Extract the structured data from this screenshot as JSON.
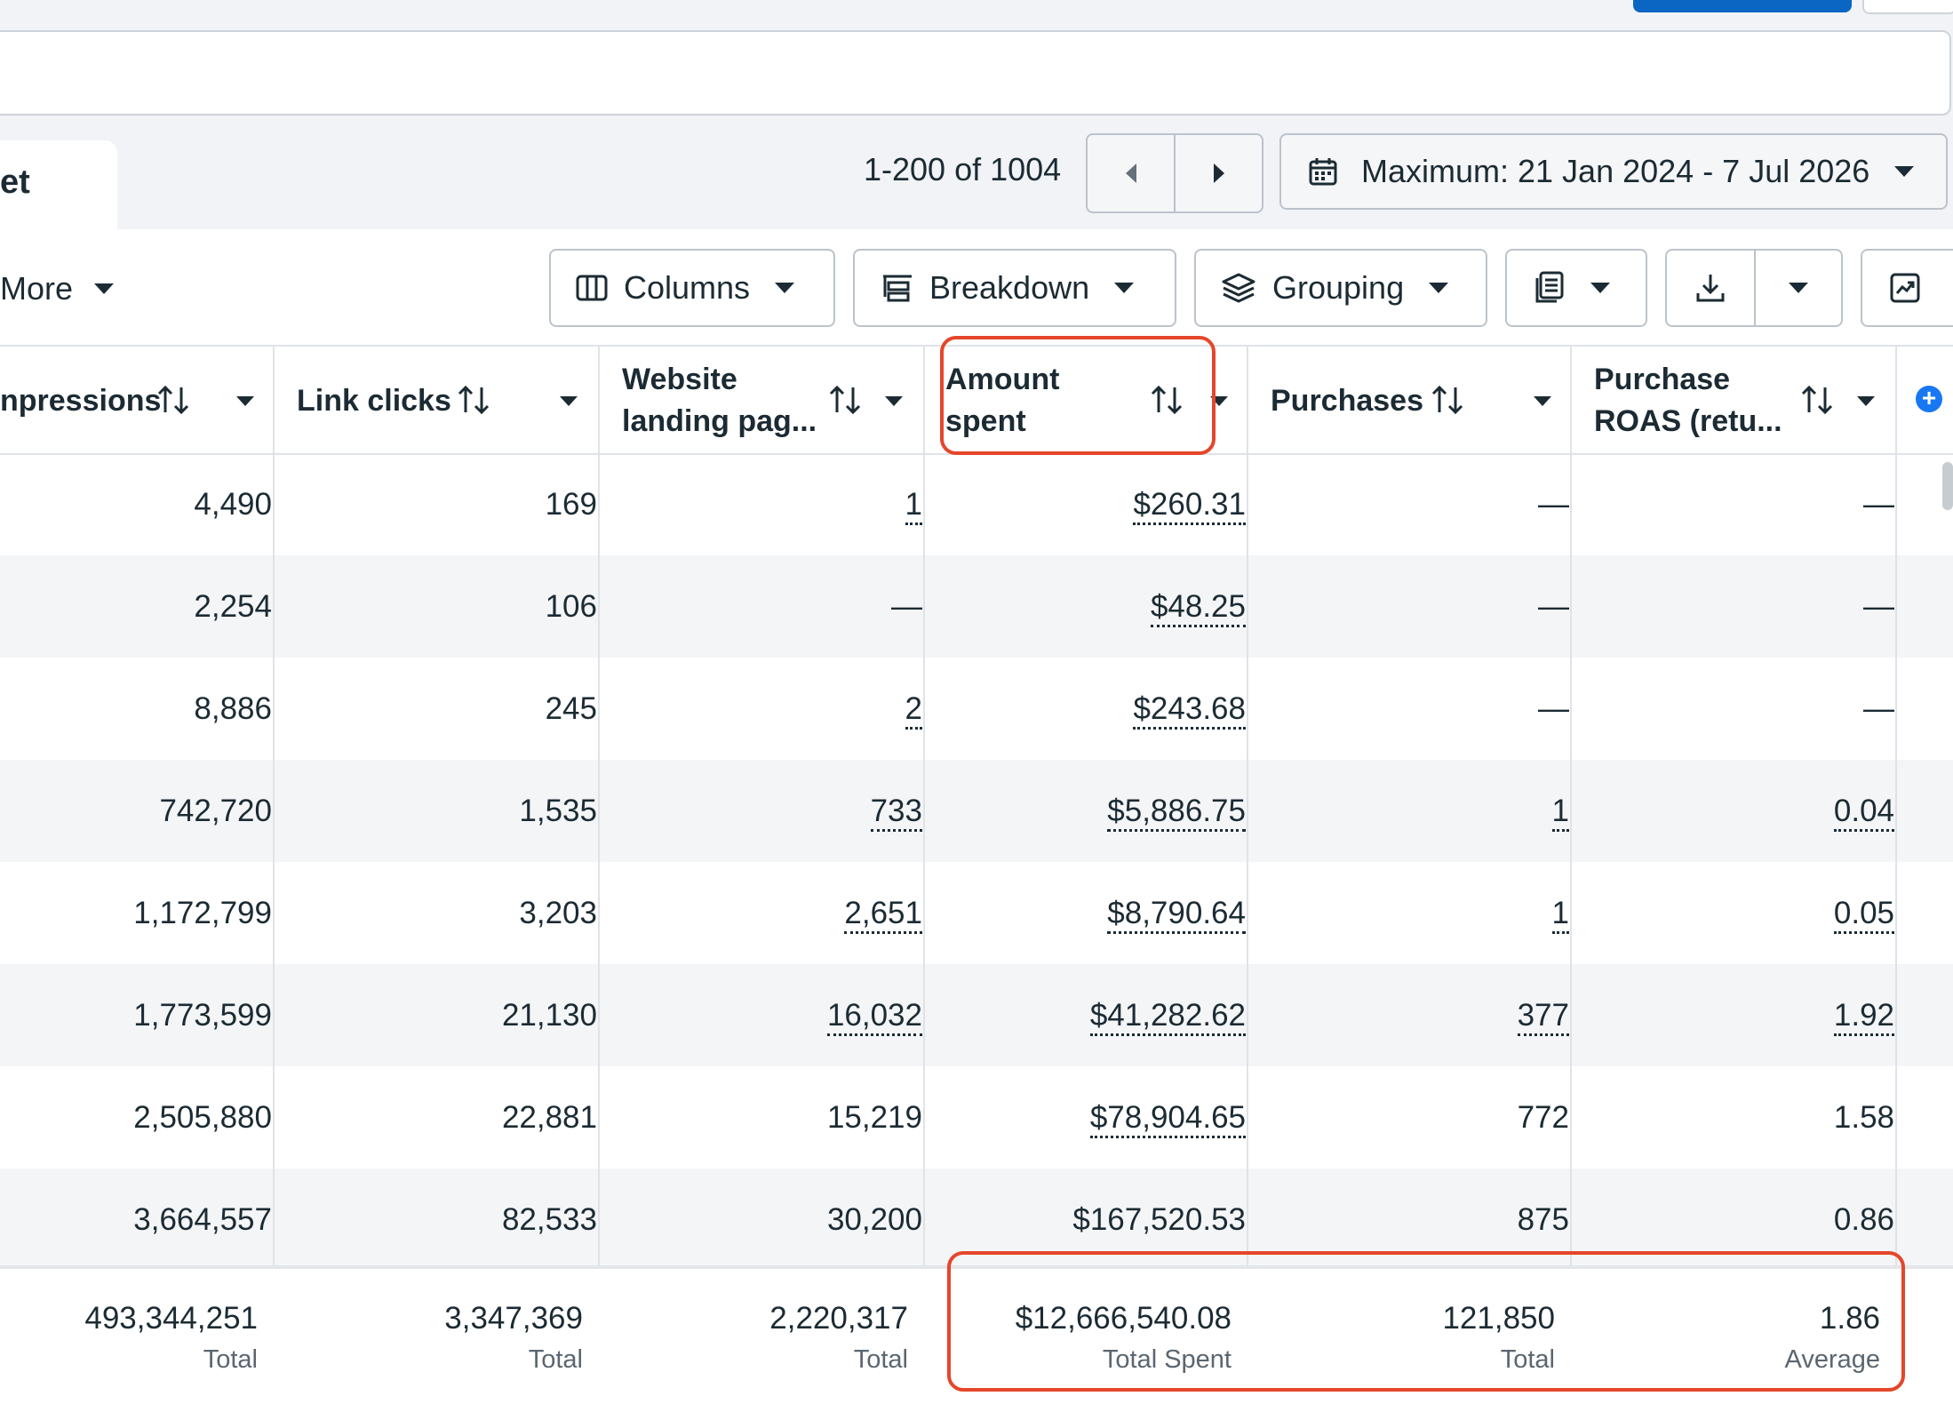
{
  "tab": {
    "label": "et"
  },
  "pagination": {
    "text": "1-200 of 1004"
  },
  "date_range": {
    "label": "Maximum: 21 Jan 2024 - 7 Jul 2026"
  },
  "toolbar": {
    "more_label": "More",
    "columns_label": "Columns",
    "breakdown_label": "Breakdown",
    "grouping_label": "Grouping"
  },
  "columns": [
    {
      "key": "impressions",
      "title_line1": "npressions",
      "title_line2": ""
    },
    {
      "key": "link_clicks",
      "title_line1": "Link clicks",
      "title_line2": ""
    },
    {
      "key": "landing",
      "title_line1": "Website",
      "title_line2": "landing pag..."
    },
    {
      "key": "amount",
      "title_line1": "Amount",
      "title_line2": "spent"
    },
    {
      "key": "purchases",
      "title_line1": "Purchases",
      "title_line2": ""
    },
    {
      "key": "roas",
      "title_line1": "Purchase",
      "title_line2": "ROAS (retu..."
    }
  ],
  "rows": [
    {
      "impressions": "4,490",
      "link_clicks": "169",
      "landing": "1",
      "amount": "$260.31",
      "purchases": "—",
      "roas": "—"
    },
    {
      "impressions": "2,254",
      "link_clicks": "106",
      "landing": "—",
      "amount": "$48.25",
      "purchases": "—",
      "roas": "—"
    },
    {
      "impressions": "8,886",
      "link_clicks": "245",
      "landing": "2",
      "amount": "$243.68",
      "purchases": "—",
      "roas": "—"
    },
    {
      "impressions": "742,720",
      "link_clicks": "1,535",
      "landing": "733",
      "amount": "$5,886.75",
      "purchases": "1",
      "roas": "0.04"
    },
    {
      "impressions": "1,172,799",
      "link_clicks": "3,203",
      "landing": "2,651",
      "amount": "$8,790.64",
      "purchases": "1",
      "roas": "0.05"
    },
    {
      "impressions": "1,773,599",
      "link_clicks": "21,130",
      "landing": "16,032",
      "amount": "$41,282.62",
      "purchases": "377",
      "roas": "1.92"
    },
    {
      "impressions": "2,505,880",
      "link_clicks": "22,881",
      "landing": "15,219",
      "amount": "$78,904.65",
      "purchases": "772",
      "roas": "1.58"
    },
    {
      "impressions": "3,664,557",
      "link_clicks": "82,533",
      "landing": "30,200",
      "amount": "$167,520.53",
      "purchases": "875",
      "roas": "0.86"
    }
  ],
  "totals": {
    "impressions": {
      "value": "493,344,251",
      "label": "Total"
    },
    "link_clicks": {
      "value": "3,347,369",
      "label": "Total"
    },
    "landing": {
      "value": "2,220,317",
      "label": "Total"
    },
    "amount": {
      "value": "$12,666,540.08",
      "label": "Total Spent"
    },
    "purchases": {
      "value": "121,850",
      "label": "Total"
    },
    "roas": {
      "value": "1.86",
      "label": "Average"
    }
  },
  "highlight_color": "#e5462a",
  "accent_color": "#1877f2"
}
